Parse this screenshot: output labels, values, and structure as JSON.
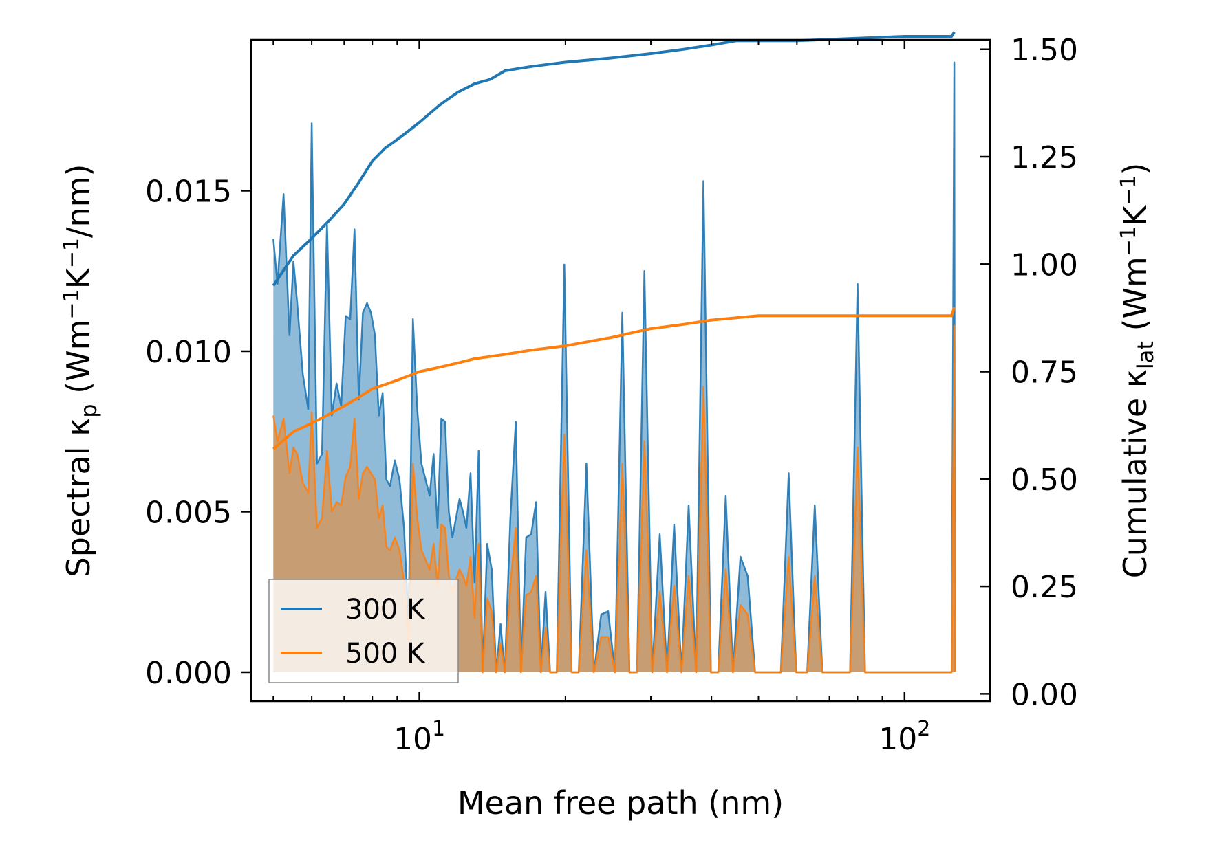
{
  "chart_data": {
    "type": "line",
    "xlabel": "Mean free path (nm)",
    "ylabel_left": "Spectral κp (Wm−1K−1/nm)",
    "ylabel_right": "Cumulative κlat (Wm−1K−1)",
    "x_scale": "log",
    "xlim": [
      4.5,
      150
    ],
    "ylim_left": [
      -0.0009,
      0.0197
    ],
    "ylim_right": [
      -0.017,
      1.522
    ],
    "x_ticks": [
      10,
      100
    ],
    "x_tick_labels": [
      "10^1",
      "10^2"
    ],
    "y_left_ticks": [
      0.0,
      0.005,
      0.01,
      0.015
    ],
    "y_left_tick_labels": [
      "0.000",
      "0.005",
      "0.010",
      "0.015"
    ],
    "y_right_ticks": [
      0.0,
      0.25,
      0.5,
      0.75,
      1.0,
      1.25,
      1.5
    ],
    "y_right_tick_labels": [
      "0.00",
      "0.25",
      "0.50",
      "0.75",
      "1.00",
      "1.25",
      "1.50"
    ],
    "legend": {
      "position": "lower-left",
      "entries": [
        "300 K",
        "500 K"
      ]
    },
    "series": [
      {
        "name": "300 K",
        "color": "#1f77b4",
        "spectral": [
          [
            5.0,
            0.0135
          ],
          [
            5.1,
            0.0121
          ],
          [
            5.25,
            0.0149
          ],
          [
            5.4,
            0.0105
          ],
          [
            5.5,
            0.0128
          ],
          [
            5.6,
            0.0115
          ],
          [
            5.75,
            0.0093
          ],
          [
            5.9,
            0.0082
          ],
          [
            6.0,
            0.0171
          ],
          [
            6.15,
            0.0065
          ],
          [
            6.3,
            0.0068
          ],
          [
            6.45,
            0.014
          ],
          [
            6.6,
            0.008
          ],
          [
            6.75,
            0.009
          ],
          [
            6.9,
            0.0083
          ],
          [
            7.05,
            0.0111
          ],
          [
            7.2,
            0.011
          ],
          [
            7.35,
            0.0138
          ],
          [
            7.5,
            0.0085
          ],
          [
            7.65,
            0.0112
          ],
          [
            7.8,
            0.0115
          ],
          [
            7.95,
            0.0112
          ],
          [
            8.1,
            0.0105
          ],
          [
            8.25,
            0.008
          ],
          [
            8.4,
            0.0087
          ],
          [
            8.55,
            0.006
          ],
          [
            8.7,
            0.0058
          ],
          [
            8.9,
            0.0066
          ],
          [
            9.1,
            0.006
          ],
          [
            9.3,
            0.0045
          ],
          [
            9.5,
            0.0015
          ],
          [
            9.7,
            0.011
          ],
          [
            9.9,
            0.0082
          ],
          [
            10.1,
            0.0065
          ],
          [
            10.3,
            0.006
          ],
          [
            10.5,
            0.0055
          ],
          [
            10.7,
            0.0068
          ],
          [
            10.9,
            0.0045
          ],
          [
            11.1,
            0.0079
          ],
          [
            11.3,
            0.0078
          ],
          [
            11.5,
            0.005
          ],
          [
            11.7,
            0.0042
          ],
          [
            11.9,
            0.0048
          ],
          [
            12.1,
            0.0054
          ],
          [
            12.3,
            0.005
          ],
          [
            12.5,
            0.0045
          ],
          [
            12.75,
            0.0062
          ],
          [
            13.0,
            0.0028
          ],
          [
            13.25,
            0.0069
          ],
          [
            13.5,
            0.0
          ],
          [
            13.8,
            0.004
          ],
          [
            14.1,
            0.0032
          ],
          [
            14.4,
            0.0
          ],
          [
            14.7,
            0.0015
          ],
          [
            15.0,
            0.0
          ],
          [
            15.4,
            0.0048
          ],
          [
            15.8,
            0.0078
          ],
          [
            16.2,
            0.0
          ],
          [
            16.6,
            0.0042
          ],
          [
            17.0,
            0.0043
          ],
          [
            17.4,
            0.0053
          ],
          [
            17.8,
            0.0
          ],
          [
            18.2,
            0.0025
          ],
          [
            18.6,
            0.0
          ],
          [
            19.2,
            0.0
          ],
          [
            19.9,
            0.0127
          ],
          [
            20.6,
            0.0
          ],
          [
            21.3,
            0.0
          ],
          [
            22.1,
            0.0065
          ],
          [
            22.9,
            0.0
          ],
          [
            23.7,
            0.0018
          ],
          [
            24.5,
            0.0019
          ],
          [
            25.3,
            0.0
          ],
          [
            26.2,
            0.0112
          ],
          [
            27.1,
            0.0
          ],
          [
            28.1,
            0.0
          ],
          [
            29.1,
            0.0125
          ],
          [
            30.2,
            0.0
          ],
          [
            31.3,
            0.0043
          ],
          [
            32.4,
            0.0
          ],
          [
            33.5,
            0.0046
          ],
          [
            34.7,
            0.0
          ],
          [
            35.9,
            0.0052
          ],
          [
            37.2,
            0.0
          ],
          [
            38.5,
            0.0153
          ],
          [
            39.9,
            0.0
          ],
          [
            41.3,
            0.0
          ],
          [
            42.8,
            0.0055
          ],
          [
            44.3,
            0.0
          ],
          [
            45.9,
            0.0036
          ],
          [
            47.5,
            0.003
          ],
          [
            49.2,
            0.0
          ],
          [
            55.6,
            0.0
          ],
          [
            57.7,
            0.0062
          ],
          [
            59.8,
            0.0
          ],
          [
            63.0,
            0.0
          ],
          [
            65.3,
            0.0052
          ],
          [
            67.7,
            0.0
          ],
          [
            77.2,
            0.0
          ],
          [
            80.0,
            0.0121
          ],
          [
            82.9,
            0.0
          ],
          [
            125.0,
            0.0
          ],
          [
            126.6,
            0.019
          ],
          [
            127.0,
            0.0
          ]
        ],
        "cumulative": [
          [
            5.0,
            0.95
          ],
          [
            5.5,
            1.02
          ],
          [
            6.0,
            1.06
          ],
          [
            6.5,
            1.1
          ],
          [
            7.0,
            1.14
          ],
          [
            7.5,
            1.19
          ],
          [
            8.0,
            1.24
          ],
          [
            8.5,
            1.27
          ],
          [
            9.0,
            1.29
          ],
          [
            9.5,
            1.31
          ],
          [
            10.0,
            1.33
          ],
          [
            11.0,
            1.37
          ],
          [
            12.0,
            1.4
          ],
          [
            13.0,
            1.42
          ],
          [
            14.0,
            1.43
          ],
          [
            15.0,
            1.45
          ],
          [
            17.0,
            1.46
          ],
          [
            20.0,
            1.47
          ],
          [
            25.0,
            1.48
          ],
          [
            30.0,
            1.49
          ],
          [
            35.0,
            1.5
          ],
          [
            40.0,
            1.51
          ],
          [
            45.0,
            1.52
          ],
          [
            60.0,
            1.52
          ],
          [
            100.0,
            1.53
          ],
          [
            125.0,
            1.53
          ],
          [
            126.6,
            1.54
          ]
        ]
      },
      {
        "name": "500 K",
        "color": "#ff7f0e",
        "spectral": [
          [
            5.0,
            0.008
          ],
          [
            5.1,
            0.0072
          ],
          [
            5.25,
            0.0079
          ],
          [
            5.4,
            0.0062
          ],
          [
            5.5,
            0.007
          ],
          [
            5.6,
            0.0068
          ],
          [
            5.75,
            0.0059
          ],
          [
            5.9,
            0.0056
          ],
          [
            6.0,
            0.0081
          ],
          [
            6.15,
            0.0045
          ],
          [
            6.3,
            0.0048
          ],
          [
            6.45,
            0.0069
          ],
          [
            6.6,
            0.005
          ],
          [
            6.75,
            0.0053
          ],
          [
            6.9,
            0.0052
          ],
          [
            7.05,
            0.0061
          ],
          [
            7.2,
            0.0064
          ],
          [
            7.35,
            0.0079
          ],
          [
            7.5,
            0.0054
          ],
          [
            7.65,
            0.0062
          ],
          [
            7.8,
            0.0064
          ],
          [
            7.95,
            0.0062
          ],
          [
            8.1,
            0.006
          ],
          [
            8.25,
            0.0048
          ],
          [
            8.4,
            0.0052
          ],
          [
            8.55,
            0.0039
          ],
          [
            8.7,
            0.0038
          ],
          [
            8.9,
            0.0042
          ],
          [
            9.1,
            0.0038
          ],
          [
            9.3,
            0.0028
          ],
          [
            9.5,
            0.001
          ],
          [
            9.7,
            0.0065
          ],
          [
            9.9,
            0.0048
          ],
          [
            10.1,
            0.0038
          ],
          [
            10.3,
            0.0035
          ],
          [
            10.5,
            0.0032
          ],
          [
            10.7,
            0.004
          ],
          [
            10.9,
            0.0027
          ],
          [
            11.1,
            0.0046
          ],
          [
            11.3,
            0.0045
          ],
          [
            11.5,
            0.003
          ],
          [
            11.7,
            0.0025
          ],
          [
            11.9,
            0.0029
          ],
          [
            12.1,
            0.0032
          ],
          [
            12.3,
            0.003
          ],
          [
            12.5,
            0.0027
          ],
          [
            12.75,
            0.0036
          ],
          [
            13.0,
            0.0017
          ],
          [
            13.25,
            0.004
          ],
          [
            13.5,
            0.0
          ],
          [
            13.8,
            0.0023
          ],
          [
            14.1,
            0.0019
          ],
          [
            14.4,
            0.0
          ],
          [
            14.7,
            0.0009
          ],
          [
            15.0,
            0.0
          ],
          [
            15.4,
            0.0027
          ],
          [
            15.8,
            0.0045
          ],
          [
            16.2,
            0.0
          ],
          [
            16.6,
            0.0024
          ],
          [
            17.0,
            0.0025
          ],
          [
            17.4,
            0.003
          ],
          [
            17.8,
            0.0
          ],
          [
            18.2,
            0.0014
          ],
          [
            18.6,
            0.0
          ],
          [
            19.2,
            0.0
          ],
          [
            19.9,
            0.0074
          ],
          [
            20.6,
            0.0
          ],
          [
            21.3,
            0.0
          ],
          [
            22.1,
            0.0038
          ],
          [
            22.9,
            0.0
          ],
          [
            23.7,
            0.0011
          ],
          [
            24.5,
            0.0011
          ],
          [
            25.3,
            0.0
          ],
          [
            26.2,
            0.0065
          ],
          [
            27.1,
            0.0
          ],
          [
            28.1,
            0.0
          ],
          [
            29.1,
            0.0072
          ],
          [
            30.2,
            0.0
          ],
          [
            31.3,
            0.0025
          ],
          [
            32.4,
            0.0
          ],
          [
            33.5,
            0.0027
          ],
          [
            34.7,
            0.0
          ],
          [
            35.9,
            0.003
          ],
          [
            37.2,
            0.0
          ],
          [
            38.5,
            0.0089
          ],
          [
            39.9,
            0.0
          ],
          [
            41.3,
            0.0
          ],
          [
            42.8,
            0.0032
          ],
          [
            44.3,
            0.0
          ],
          [
            45.9,
            0.0021
          ],
          [
            47.5,
            0.0018
          ],
          [
            49.2,
            0.0
          ],
          [
            55.6,
            0.0
          ],
          [
            57.7,
            0.0036
          ],
          [
            59.8,
            0.0
          ],
          [
            63.0,
            0.0
          ],
          [
            65.3,
            0.003
          ],
          [
            67.7,
            0.0
          ],
          [
            77.2,
            0.0
          ],
          [
            80.0,
            0.007
          ],
          [
            82.9,
            0.0
          ],
          [
            125.0,
            0.0
          ],
          [
            126.6,
            0.0108
          ],
          [
            127.0,
            0.0
          ]
        ],
        "cumulative": [
          [
            5.0,
            0.57
          ],
          [
            5.5,
            0.61
          ],
          [
            6.0,
            0.63
          ],
          [
            6.5,
            0.65
          ],
          [
            7.0,
            0.67
          ],
          [
            7.5,
            0.69
          ],
          [
            8.0,
            0.71
          ],
          [
            8.5,
            0.72
          ],
          [
            9.0,
            0.73
          ],
          [
            9.5,
            0.74
          ],
          [
            10.0,
            0.75
          ],
          [
            11.0,
            0.76
          ],
          [
            12.0,
            0.77
          ],
          [
            13.0,
            0.78
          ],
          [
            15.0,
            0.79
          ],
          [
            17.0,
            0.8
          ],
          [
            20.0,
            0.81
          ],
          [
            25.0,
            0.83
          ],
          [
            30.0,
            0.85
          ],
          [
            35.0,
            0.86
          ],
          [
            40.0,
            0.87
          ],
          [
            50.0,
            0.88
          ],
          [
            80.0,
            0.88
          ],
          [
            125.0,
            0.88
          ],
          [
            126.6,
            0.9
          ]
        ]
      }
    ]
  }
}
